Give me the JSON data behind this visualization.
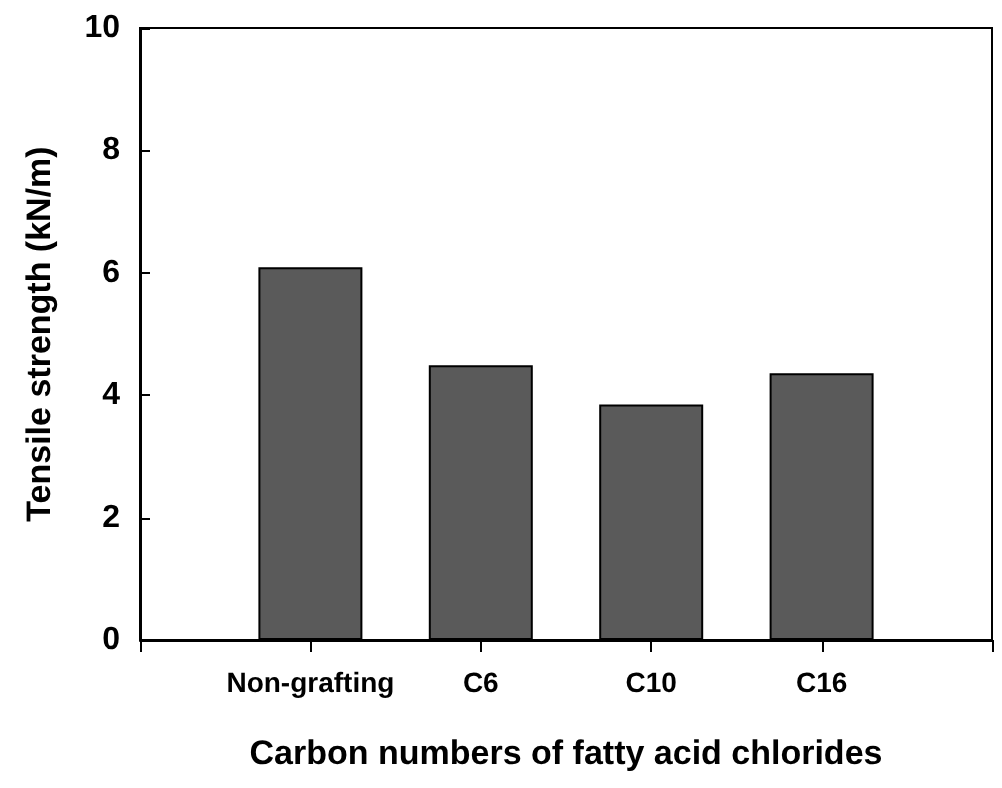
{
  "chart_data": {
    "type": "bar",
    "xlabel": "Carbon numbers of fatty acid chlorides",
    "ylabel": "Tensile strength (kN/m)",
    "categories": [
      null,
      "Non-grafting",
      "C6",
      "C10",
      "C16",
      null
    ],
    "values": [
      null,
      6.09,
      4.49,
      3.85,
      4.36,
      null
    ],
    "color": "#5a5a5a",
    "ylim": [
      0,
      10
    ],
    "yticks": [
      0,
      2,
      4,
      6,
      8,
      10
    ],
    "grid": false
  }
}
